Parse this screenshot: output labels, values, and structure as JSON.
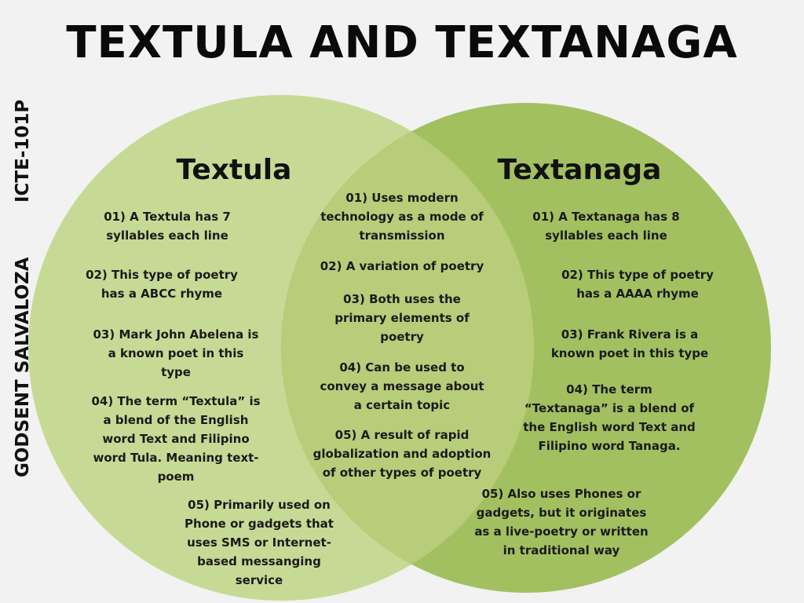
{
  "title": "TEXTULA AND TEXTANAGA",
  "side_labels": {
    "course": "ICTE-101P",
    "author": "GODSENT SALVALOZA"
  },
  "colors": {
    "background": "#f1f2f1",
    "left_circle": "#c7da95",
    "right_circle": "#a2c060",
    "overlap": "#b7cd7a"
  },
  "left": {
    "heading": "Textula",
    "items": [
      "01) A Textula has 7 syllables each line",
      "02) This type of poetry has a ABCC rhyme",
      "03) Mark John Abelena is a known poet in this type",
      "04) The term “Textula” is a blend of  the English word  Text and Filipino word Tula.  Meaning text-poem",
      "05) Primarily used on Phone or gadgets that uses SMS or Internet-based messanging service"
    ]
  },
  "center": {
    "items": [
      "01) Uses modern technology as a mode of transmission",
      "02) A variation of poetry",
      "03) Both uses the primary elements of poetry",
      "04) Can be used to convey a message about a certain topic",
      "05) A result of rapid globalization and adoption of other types of poetry"
    ]
  },
  "right": {
    "heading": "Textanaga",
    "items": [
      "01) A Textanaga has 8 syllables each line",
      "02) This type of poetry has a AAAA rhyme",
      "03) Frank Rivera is a known poet in this type",
      "04) The term “Textanaga” is a blend of  the English word Text and Filipino word Tanaga.",
      "05) Also uses Phones or gadgets, but it originates as a live-poetry or written in traditional way"
    ]
  }
}
